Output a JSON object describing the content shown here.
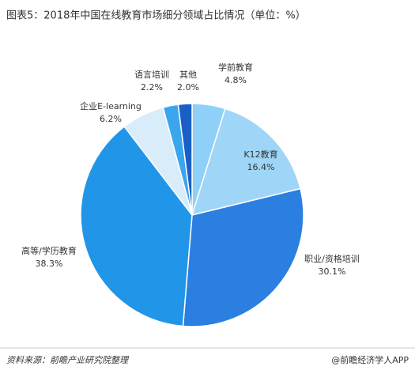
{
  "chart_data": {
    "type": "pie",
    "title": "图表5：2018年中国在线教育市场细分领域占比情况（单位：%）",
    "categories": [
      "学前教育",
      "K12教育",
      "职业/资格培训",
      "高等/学历教育",
      "企业E-learning",
      "语言培训",
      "其他"
    ],
    "values": [
      4.8,
      16.4,
      30.1,
      38.3,
      6.2,
      2.2,
      2.0
    ],
    "value_labels": [
      "4.8%",
      "16.4%",
      "30.1%",
      "38.3%",
      "6.2%",
      "2.2%",
      "2.0%"
    ],
    "colors": [
      "#8fd0f8",
      "#9fd6f8",
      "#2a7fe0",
      "#2196e8",
      "#d8ecfa",
      "#3aa6ee",
      "#1a5fc8"
    ],
    "source": "资料来源：前瞻产业研究院整理",
    "credit": "@前瞻经济学人APP"
  }
}
